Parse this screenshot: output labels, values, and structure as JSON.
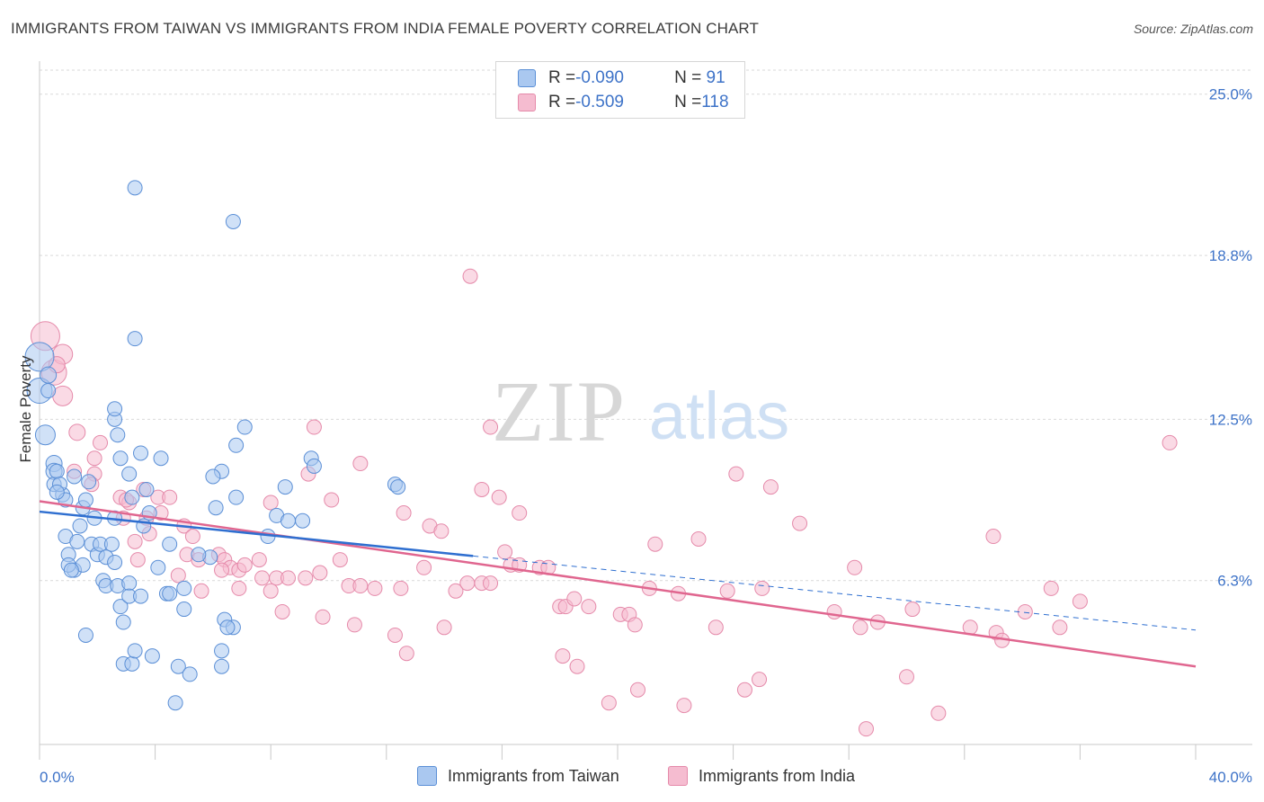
{
  "title": "IMMIGRANTS FROM TAIWAN VS IMMIGRANTS FROM INDIA FEMALE POVERTY CORRELATION CHART",
  "source": "Source: ZipAtlas.com",
  "watermark": {
    "zip": "ZIP",
    "atlas": "atlas"
  },
  "legend_top": [
    {
      "r_label": "R = ",
      "r_value": "-0.090",
      "n_label": "N = ",
      "n_value": " 91"
    },
    {
      "r_label": "R = ",
      "r_value": "-0.509",
      "n_label": "N = ",
      "n_value": "118"
    }
  ],
  "chart_data": {
    "type": "scatter",
    "title": "IMMIGRANTS FROM TAIWAN VS IMMIGRANTS FROM INDIA FEMALE POVERTY CORRELATION CHART",
    "xlabel": "",
    "ylabel": "Female Poverty",
    "xlim": [
      0,
      40
    ],
    "ylim": [
      0,
      26.2
    ],
    "x_tick_labels": [
      "0.0%",
      "40.0%"
    ],
    "y_tick_values": [
      6.3,
      12.5,
      18.8,
      25.0
    ],
    "y_tick_labels": [
      "6.3%",
      "12.5%",
      "18.8%",
      "25.0%"
    ],
    "grid": true,
    "legend_position": "bottom",
    "colors": {
      "taiwan_fill": "#aac8f0",
      "taiwan_stroke": "#5b8fd6",
      "taiwan_line": "#2f6fd0",
      "india_fill": "#f5bcd0",
      "india_stroke": "#e58aaa",
      "india_line": "#e0668f",
      "tick_label": "#3e73c8"
    },
    "series": [
      {
        "name": "Immigrants from Taiwan",
        "r": -0.09,
        "n": 91,
        "trend": {
          "solid_x": [
            0,
            15
          ],
          "dashed_x": [
            15,
            40
          ],
          "y_at_0": 8.95,
          "y_at_40": 4.4
        },
        "points": [
          [
            0.0,
            14.9,
            16
          ],
          [
            0.0,
            13.6,
            14
          ],
          [
            0.2,
            11.9,
            11
          ],
          [
            0.3,
            14.2,
            9
          ],
          [
            0.5,
            10.8,
            9
          ],
          [
            0.5,
            10.5,
            9
          ],
          [
            0.5,
            10.0,
            8
          ],
          [
            0.8,
            9.6,
            8
          ],
          [
            0.9,
            9.4,
            8
          ],
          [
            0.6,
            10.5,
            8
          ],
          [
            0.7,
            10.0,
            8
          ],
          [
            1.2,
            10.3,
            8
          ],
          [
            0.9,
            8.0,
            8
          ],
          [
            1.3,
            7.8,
            8
          ],
          [
            1.0,
            7.3,
            8
          ],
          [
            1.2,
            6.7,
            8
          ],
          [
            1.0,
            6.9,
            8
          ],
          [
            1.5,
            6.9,
            8
          ],
          [
            1.4,
            8.4,
            8
          ],
          [
            1.5,
            9.1,
            8
          ],
          [
            1.6,
            9.4,
            8
          ],
          [
            1.7,
            10.1,
            8
          ],
          [
            1.9,
            8.7,
            8
          ],
          [
            1.8,
            7.7,
            8
          ],
          [
            2.0,
            7.3,
            8
          ],
          [
            2.1,
            7.7,
            8
          ],
          [
            2.3,
            7.2,
            8
          ],
          [
            2.5,
            7.7,
            8
          ],
          [
            2.6,
            7.0,
            8
          ],
          [
            2.2,
            6.3,
            8
          ],
          [
            2.3,
            6.1,
            8
          ],
          [
            2.7,
            6.1,
            8
          ],
          [
            2.8,
            5.3,
            8
          ],
          [
            3.1,
            6.2,
            8
          ],
          [
            3.1,
            5.7,
            8
          ],
          [
            3.5,
            5.7,
            8
          ],
          [
            2.9,
            4.7,
            8
          ],
          [
            1.6,
            4.2,
            8
          ],
          [
            2.9,
            3.1,
            8
          ],
          [
            3.2,
            3.1,
            8
          ],
          [
            3.3,
            3.6,
            8
          ],
          [
            3.9,
            3.4,
            8
          ],
          [
            4.4,
            5.8,
            8
          ],
          [
            4.5,
            5.8,
            8
          ],
          [
            5.0,
            5.2,
            8
          ],
          [
            4.8,
            3.0,
            8
          ],
          [
            5.2,
            2.7,
            8
          ],
          [
            4.7,
            1.6,
            8
          ],
          [
            6.4,
            4.8,
            8
          ],
          [
            6.7,
            4.5,
            8
          ],
          [
            6.5,
            4.5,
            8
          ],
          [
            6.3,
            3.6,
            8
          ],
          [
            6.3,
            3.0,
            8
          ],
          [
            2.7,
            11.9,
            8
          ],
          [
            2.6,
            12.5,
            8
          ],
          [
            2.6,
            12.9,
            8
          ],
          [
            2.8,
            11.0,
            8
          ],
          [
            3.1,
            10.4,
            8
          ],
          [
            3.5,
            11.2,
            8
          ],
          [
            4.2,
            11.0,
            8
          ],
          [
            3.7,
            9.8,
            8
          ],
          [
            3.8,
            8.9,
            8
          ],
          [
            3.6,
            8.4,
            8
          ],
          [
            4.5,
            7.7,
            8
          ],
          [
            3.2,
            9.5,
            8
          ],
          [
            2.6,
            8.7,
            8
          ],
          [
            3.3,
            15.6,
            8
          ],
          [
            3.3,
            21.4,
            8
          ],
          [
            6.7,
            20.1,
            8
          ],
          [
            7.1,
            12.2,
            8
          ],
          [
            6.8,
            11.5,
            8
          ],
          [
            6.3,
            10.5,
            8
          ],
          [
            6.0,
            10.3,
            8
          ],
          [
            6.8,
            9.5,
            8
          ],
          [
            6.1,
            9.1,
            8
          ],
          [
            5.9,
            7.2,
            8
          ],
          [
            8.5,
            9.9,
            8
          ],
          [
            8.2,
            8.8,
            8
          ],
          [
            8.6,
            8.6,
            8
          ],
          [
            9.1,
            8.6,
            8
          ],
          [
            7.9,
            8.0,
            8
          ],
          [
            9.4,
            11.0,
            8
          ],
          [
            9.5,
            10.7,
            8
          ],
          [
            12.3,
            10.0,
            8
          ],
          [
            12.4,
            9.9,
            8
          ],
          [
            1.1,
            6.7,
            8
          ],
          [
            0.6,
            9.7,
            8
          ],
          [
            0.3,
            13.6,
            8
          ],
          [
            5.0,
            6.0,
            8
          ],
          [
            4.1,
            6.8,
            8
          ],
          [
            5.5,
            7.3,
            8
          ]
        ]
      },
      {
        "name": "Immigrants from India",
        "r": -0.509,
        "n": 118,
        "trend": {
          "solid_x": [
            0,
            40
          ],
          "y_at_0": 9.35,
          "y_at_40": 3.0
        },
        "points": [
          [
            0.2,
            15.7,
            16
          ],
          [
            0.5,
            14.3,
            14
          ],
          [
            0.8,
            15.0,
            11
          ],
          [
            0.8,
            13.4,
            11
          ],
          [
            0.6,
            14.6,
            9
          ],
          [
            1.3,
            12.0,
            9
          ],
          [
            2.1,
            11.6,
            8
          ],
          [
            1.2,
            10.5,
            8
          ],
          [
            1.9,
            11.0,
            8
          ],
          [
            1.9,
            10.4,
            8
          ],
          [
            2.8,
            9.5,
            8
          ],
          [
            3.1,
            9.3,
            8
          ],
          [
            3.6,
            9.8,
            8
          ],
          [
            4.1,
            9.5,
            8
          ],
          [
            4.5,
            9.5,
            8
          ],
          [
            2.9,
            8.7,
            8
          ],
          [
            3.7,
            8.7,
            8
          ],
          [
            3.8,
            8.1,
            8
          ],
          [
            4.2,
            8.9,
            8
          ],
          [
            5.0,
            8.4,
            8
          ],
          [
            5.3,
            8.0,
            8
          ],
          [
            3.3,
            7.8,
            8
          ],
          [
            3.4,
            7.1,
            8
          ],
          [
            5.1,
            7.3,
            8
          ],
          [
            5.5,
            7.1,
            8
          ],
          [
            6.2,
            7.3,
            8
          ],
          [
            6.4,
            7.1,
            8
          ],
          [
            6.6,
            6.8,
            8
          ],
          [
            6.9,
            6.7,
            8
          ],
          [
            7.1,
            6.9,
            8
          ],
          [
            7.6,
            7.1,
            8
          ],
          [
            6.3,
            6.7,
            8
          ],
          [
            7.7,
            6.4,
            8
          ],
          [
            8.2,
            6.4,
            8
          ],
          [
            8.6,
            6.4,
            8
          ],
          [
            9.2,
            6.4,
            8
          ],
          [
            9.7,
            6.6,
            8
          ],
          [
            10.4,
            7.1,
            8
          ],
          [
            10.7,
            6.1,
            8
          ],
          [
            11.1,
            6.1,
            8
          ],
          [
            11.6,
            6.0,
            8
          ],
          [
            12.5,
            6.0,
            8
          ],
          [
            13.3,
            6.8,
            8
          ],
          [
            14.4,
            5.9,
            8
          ],
          [
            14.8,
            6.2,
            8
          ],
          [
            15.3,
            6.2,
            8
          ],
          [
            15.6,
            6.2,
            8
          ],
          [
            16.1,
            7.4,
            8
          ],
          [
            16.3,
            6.9,
            8
          ],
          [
            16.6,
            6.9,
            8
          ],
          [
            17.3,
            6.8,
            8
          ],
          [
            17.6,
            6.8,
            8
          ],
          [
            18.0,
            5.3,
            8
          ],
          [
            18.2,
            5.3,
            8
          ],
          [
            18.5,
            5.6,
            8
          ],
          [
            19.0,
            5.3,
            8
          ],
          [
            20.1,
            5.0,
            8
          ],
          [
            20.4,
            5.0,
            8
          ],
          [
            20.6,
            4.6,
            8
          ],
          [
            21.1,
            6.0,
            8
          ],
          [
            21.3,
            7.7,
            8
          ],
          [
            22.1,
            5.8,
            8
          ],
          [
            22.8,
            7.9,
            8
          ],
          [
            23.8,
            5.9,
            8
          ],
          [
            23.4,
            4.5,
            8
          ],
          [
            24.1,
            10.4,
            8
          ],
          [
            25.0,
            6.0,
            8
          ],
          [
            25.3,
            9.9,
            8
          ],
          [
            26.3,
            8.5,
            8
          ],
          [
            27.5,
            5.1,
            8
          ],
          [
            28.4,
            4.5,
            8
          ],
          [
            28.2,
            6.8,
            8
          ],
          [
            29.0,
            4.7,
            8
          ],
          [
            30.0,
            2.6,
            8
          ],
          [
            30.2,
            5.2,
            8
          ],
          [
            31.1,
            1.2,
            8
          ],
          [
            32.2,
            4.5,
            8
          ],
          [
            33.1,
            4.3,
            8
          ],
          [
            33.3,
            4.0,
            8
          ],
          [
            33.0,
            8.0,
            8
          ],
          [
            34.1,
            5.1,
            8
          ],
          [
            35.0,
            6.0,
            8
          ],
          [
            35.3,
            4.5,
            8
          ],
          [
            36.0,
            5.5,
            8
          ],
          [
            39.1,
            11.6,
            8
          ],
          [
            14.9,
            18.0,
            8
          ],
          [
            15.6,
            12.2,
            8
          ],
          [
            11.1,
            10.8,
            8
          ],
          [
            9.5,
            12.2,
            8
          ],
          [
            9.3,
            10.4,
            8
          ],
          [
            8.0,
            9.3,
            8
          ],
          [
            10.1,
            9.4,
            8
          ],
          [
            12.6,
            8.9,
            8
          ],
          [
            13.5,
            8.4,
            8
          ],
          [
            13.9,
            8.2,
            8
          ],
          [
            15.3,
            9.8,
            8
          ],
          [
            15.9,
            9.5,
            8
          ],
          [
            16.6,
            8.9,
            8
          ],
          [
            14.0,
            4.5,
            8
          ],
          [
            12.3,
            4.2,
            8
          ],
          [
            12.7,
            3.5,
            8
          ],
          [
            10.9,
            4.6,
            8
          ],
          [
            9.8,
            4.9,
            8
          ],
          [
            8.4,
            5.1,
            8
          ],
          [
            18.1,
            3.4,
            8
          ],
          [
            18.6,
            3.0,
            8
          ],
          [
            19.7,
            1.6,
            8
          ],
          [
            20.7,
            2.1,
            8
          ],
          [
            22.3,
            1.5,
            8
          ],
          [
            24.4,
            2.1,
            8
          ],
          [
            24.9,
            2.5,
            8
          ],
          [
            28.6,
            0.6,
            8
          ],
          [
            6.9,
            6.0,
            8
          ],
          [
            5.6,
            5.9,
            8
          ],
          [
            4.8,
            6.5,
            8
          ],
          [
            8.0,
            5.9,
            8
          ],
          [
            3.0,
            9.4,
            8
          ],
          [
            1.8,
            10.0,
            8
          ]
        ]
      }
    ]
  },
  "bottom_legend": [
    "Immigrants from Taiwan",
    "Immigrants from India"
  ]
}
